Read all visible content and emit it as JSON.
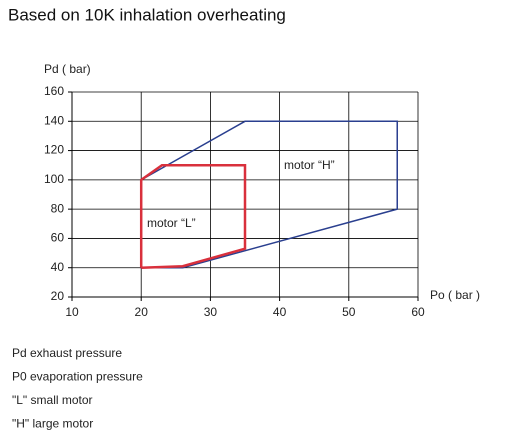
{
  "chart_data": {
    "type": "line",
    "title": "Based on 10K inhalation overheating",
    "y_label": "Pd ( bar)",
    "x_label": "Po ( bar )",
    "xlim": [
      10,
      60
    ],
    "xticks": [
      10,
      20,
      30,
      40,
      50,
      60
    ],
    "ylim": [
      20,
      160
    ],
    "yticks": [
      20,
      40,
      60,
      80,
      100,
      120,
      140,
      160
    ],
    "grid": true,
    "series": [
      {
        "name": "motor “H”",
        "color": "#2a3f8f",
        "x": [
          20,
          35,
          57,
          57,
          26,
          20,
          20
        ],
        "values": [
          100,
          140,
          140,
          80,
          40,
          40,
          100
        ]
      },
      {
        "name": "motor “L”",
        "color": "#d9303c",
        "x": [
          20,
          20,
          23,
          35,
          35,
          26,
          20
        ],
        "values": [
          40,
          100,
          110,
          110,
          53,
          41,
          40
        ]
      }
    ],
    "notes": [
      "Pd exhaust pressure",
      "P0 evaporation pressure",
      "\"L\" small motor",
      "\"H\" large motor"
    ]
  }
}
